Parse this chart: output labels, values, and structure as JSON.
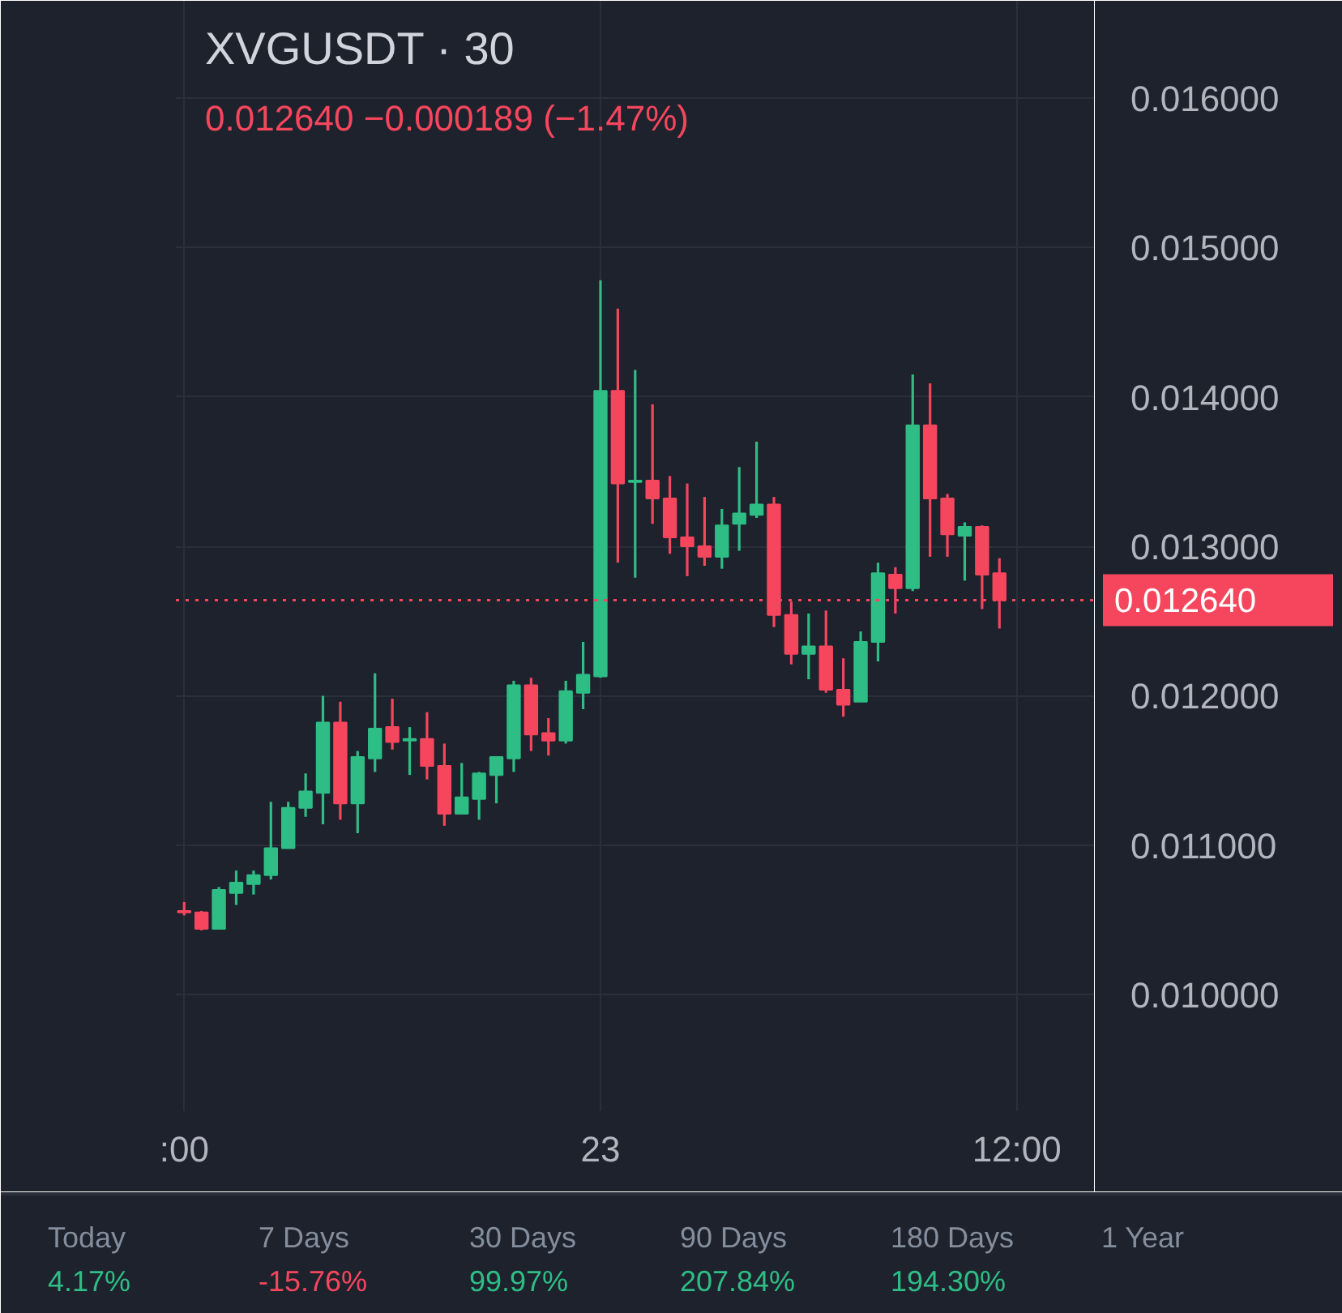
{
  "chart_data": {
    "type": "candlestick",
    "title": "XVGUSDT · 30",
    "subtitle": "0.012640 −0.000189 (−1.47%)",
    "categories": [
      ":00",
      null,
      null,
      null,
      null,
      null,
      null,
      null,
      null,
      null,
      null,
      null,
      null,
      null,
      null,
      null,
      null,
      null,
      null,
      null,
      null,
      null,
      null,
      null,
      "23",
      null,
      null,
      null,
      null,
      null,
      null,
      null,
      null,
      null,
      null,
      null,
      null,
      null,
      null,
      null,
      null,
      null,
      null,
      null,
      null,
      null,
      null,
      null,
      "12:00"
    ],
    "ohlc": [
      [
        0.01056,
        0.01062,
        0.01053,
        0.01055
      ],
      [
        0.01055,
        0.01056,
        0.01043,
        0.01044
      ],
      [
        0.01044,
        0.01072,
        0.01044,
        0.0107
      ],
      [
        0.01068,
        0.01083,
        0.0106,
        0.01075
      ],
      [
        0.01074,
        0.01083,
        0.01067,
        0.0108
      ],
      [
        0.0108,
        0.01129,
        0.01077,
        0.01098
      ],
      [
        0.01098,
        0.01129,
        0.01098,
        0.01125
      ],
      [
        0.01125,
        0.01148,
        0.01119,
        0.01136
      ],
      [
        0.01135,
        0.012,
        0.01114,
        0.01182
      ],
      [
        0.01182,
        0.01196,
        0.01117,
        0.01128
      ],
      [
        0.01128,
        0.01163,
        0.01108,
        0.01159
      ],
      [
        0.01158,
        0.01215,
        0.01149,
        0.01178
      ],
      [
        0.01179,
        0.01198,
        0.01164,
        0.01169
      ],
      [
        0.0117,
        0.01179,
        0.01147,
        0.01171
      ],
      [
        0.01171,
        0.01189,
        0.01144,
        0.01153
      ],
      [
        0.01153,
        0.01168,
        0.01113,
        0.01121
      ],
      [
        0.01121,
        0.01155,
        0.01121,
        0.01132
      ],
      [
        0.01131,
        0.01149,
        0.01117,
        0.01148
      ],
      [
        0.01147,
        0.01159,
        0.01128,
        0.01159
      ],
      [
        0.01158,
        0.0121,
        0.01149,
        0.01207
      ],
      [
        0.01207,
        0.01212,
        0.01163,
        0.01174
      ],
      [
        0.01175,
        0.01185,
        0.0116,
        0.0117
      ],
      [
        0.0117,
        0.0121,
        0.01168,
        0.01203
      ],
      [
        0.01202,
        0.01236,
        0.01191,
        0.01214
      ],
      [
        0.01213,
        0.01478,
        0.01212,
        0.01404
      ],
      [
        0.01404,
        0.01459,
        0.01289,
        0.01342
      ],
      [
        0.01343,
        0.01418,
        0.01279,
        0.01344
      ],
      [
        0.01344,
        0.01395,
        0.01315,
        0.01332
      ],
      [
        0.01332,
        0.01347,
        0.01295,
        0.01306
      ],
      [
        0.01306,
        0.01342,
        0.0128,
        0.013
      ],
      [
        0.013,
        0.01333,
        0.01287,
        0.01293
      ],
      [
        0.01293,
        0.01325,
        0.01285,
        0.01314
      ],
      [
        0.01315,
        0.01353,
        0.01297,
        0.01322
      ],
      [
        0.01321,
        0.0137,
        0.01319,
        0.01328
      ],
      [
        0.01328,
        0.01333,
        0.01246,
        0.01254
      ],
      [
        0.01254,
        0.01263,
        0.01221,
        0.01228
      ],
      [
        0.01228,
        0.01255,
        0.01211,
        0.01233
      ],
      [
        0.01233,
        0.01257,
        0.01202,
        0.01204
      ],
      [
        0.01204,
        0.01225,
        0.01186,
        0.01194
      ],
      [
        0.01196,
        0.01243,
        0.01196,
        0.01236
      ],
      [
        0.01236,
        0.01289,
        0.01223,
        0.01282
      ],
      [
        0.01281,
        0.01286,
        0.01255,
        0.01272
      ],
      [
        0.01272,
        0.01415,
        0.0127,
        0.01381
      ],
      [
        0.01381,
        0.01409,
        0.01293,
        0.01332
      ],
      [
        0.01332,
        0.01335,
        0.01293,
        0.01308
      ],
      [
        0.01307,
        0.01316,
        0.01277,
        0.01313
      ],
      [
        0.01313,
        0.01314,
        0.01258,
        0.01281
      ],
      [
        0.01282,
        0.01292,
        0.01245,
        0.01264
      ],
      null
    ],
    "colors": [
      "#f6465d",
      "#f6465d",
      "#2ebd85",
      "#2ebd85",
      "#2ebd85",
      "#2ebd85",
      "#2ebd85",
      "#2ebd85",
      "#2ebd85",
      "#f6465d",
      "#2ebd85",
      "#2ebd85",
      "#f6465d",
      "#2ebd85",
      "#f6465d",
      "#f6465d",
      "#2ebd85",
      "#2ebd85",
      "#2ebd85",
      "#2ebd85",
      "#f6465d",
      "#f6465d",
      "#2ebd85",
      "#2ebd85",
      "#2ebd85",
      "#f6465d",
      "#2ebd85",
      "#f6465d",
      "#f6465d",
      "#f6465d",
      "#f6465d",
      "#2ebd85",
      "#2ebd85",
      "#2ebd85",
      "#f6465d",
      "#f6465d",
      "#2ebd85",
      "#f6465d",
      "#f6465d",
      "#2ebd85",
      "#2ebd85",
      "#f6465d",
      "#2ebd85",
      "#f6465d",
      "#f6465d",
      "#2ebd85",
      "#f6465d",
      "#f6465d",
      null
    ],
    "ylim": [
      0.00922,
      0.01665
    ],
    "yticks": [
      {
        "value": 0.01,
        "label": "0.010000"
      },
      {
        "value": 0.011,
        "label": "0.011000"
      },
      {
        "value": 0.012,
        "label": "0.012000"
      },
      {
        "value": 0.013,
        "label": "0.013000"
      },
      {
        "value": 0.014,
        "label": "0.014000"
      },
      {
        "value": 0.015,
        "label": "0.015000"
      },
      {
        "value": 0.016,
        "label": "0.016000"
      }
    ],
    "grid": true,
    "ref_lines": [
      {
        "axis": "y",
        "value": 0.01264,
        "label": "0.012640",
        "color": "#f6465d",
        "line_style": "dotted"
      }
    ],
    "annotations": [
      "Today",
      "4.17%",
      "7 Days",
      "-15.76%",
      "30 Days",
      "99.97%",
      "90 Days",
      "207.84%",
      "180 Days",
      "194.30%",
      "1 Year"
    ]
  }
}
